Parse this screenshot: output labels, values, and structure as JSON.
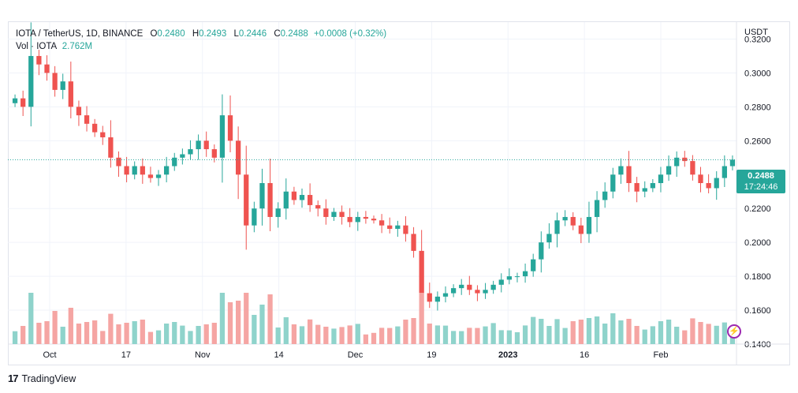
{
  "header": {
    "symbol": "IOTA / TetherUS, 1D, BINANCE",
    "o_label": "O",
    "o_value": "0.2480",
    "h_label": "H",
    "h_value": "0.2493",
    "l_label": "L",
    "l_value": "0.2446",
    "c_label": "C",
    "c_value": "0.2488",
    "change": "+0.0008 (+0.32%)",
    "vol_label": "Vol · IOTA",
    "vol_value": "2.762M"
  },
  "price_axis": {
    "currency": "USDT",
    "ticks": [
      "0.3200",
      "0.3000",
      "0.2800",
      "0.2600",
      "0.2200",
      "0.2000",
      "0.1800",
      "0.1600",
      "0.1400"
    ]
  },
  "last_price": {
    "price": "0.2488",
    "countdown": "17:24:46"
  },
  "time_axis": [
    {
      "label": "Oct",
      "bold": false
    },
    {
      "label": "17",
      "bold": false
    },
    {
      "label": "Nov",
      "bold": false
    },
    {
      "label": "14",
      "bold": false
    },
    {
      "label": "Dec",
      "bold": false
    },
    {
      "label": "19",
      "bold": false
    },
    {
      "label": "2023",
      "bold": true
    },
    {
      "label": "16",
      "bold": false
    },
    {
      "label": "Feb",
      "bold": false
    }
  ],
  "branding": {
    "name": "TradingView"
  },
  "colors": {
    "up": "#26a69a",
    "down": "#ef5350",
    "vol_up": "#8fd3cb",
    "vol_down": "#f5a5a3"
  },
  "chart_data": {
    "type": "candlestick",
    "symbol": "IOTA / TetherUS",
    "interval": "1D",
    "y_range": [
      0.14,
      0.33
    ],
    "approximate_close_path": [
      0.285,
      0.28,
      0.31,
      0.305,
      0.3,
      0.29,
      0.295,
      0.28,
      0.275,
      0.27,
      0.265,
      0.262,
      0.25,
      0.245,
      0.24,
      0.245,
      0.24,
      0.238,
      0.24,
      0.245,
      0.25,
      0.252,
      0.255,
      0.26,
      0.255,
      0.25,
      0.275,
      0.26,
      0.24,
      0.21,
      0.22,
      0.235,
      0.215,
      0.22,
      0.23,
      0.225,
      0.228,
      0.222,
      0.22,
      0.215,
      0.218,
      0.215,
      0.212,
      0.215,
      0.214,
      0.213,
      0.21,
      0.208,
      0.21,
      0.205,
      0.195,
      0.17,
      0.165,
      0.168,
      0.17,
      0.173,
      0.175,
      0.172,
      0.17,
      0.172,
      0.175,
      0.178,
      0.18,
      0.18,
      0.183,
      0.19,
      0.2,
      0.205,
      0.213,
      0.215,
      0.21,
      0.205,
      0.215,
      0.225,
      0.23,
      0.24,
      0.245,
      0.235,
      0.23,
      0.232,
      0.235,
      0.24,
      0.245,
      0.25,
      0.248,
      0.24,
      0.235,
      0.232,
      0.238,
      0.245,
      0.2488
    ]
  }
}
